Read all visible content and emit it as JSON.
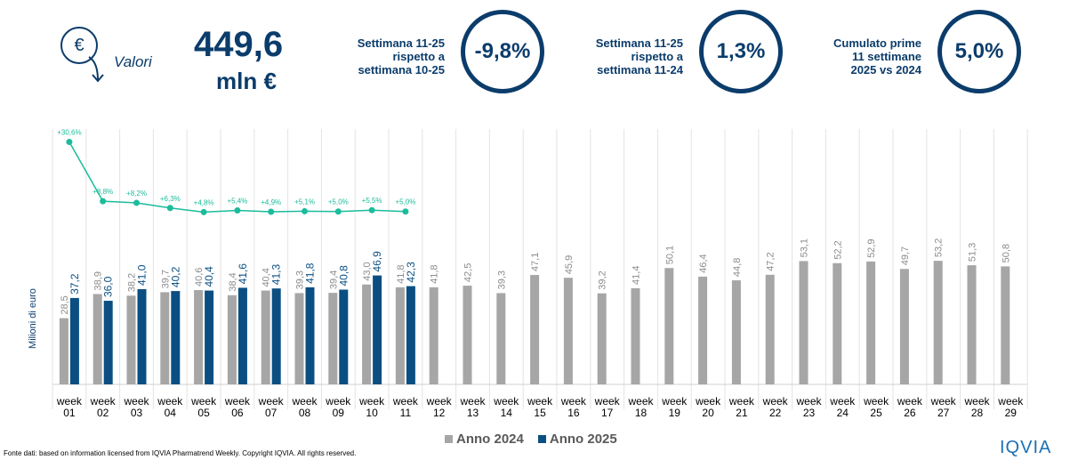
{
  "header": {
    "icon": "€",
    "caption": "Valori",
    "total": "449,6",
    "unit": "mln €",
    "kpis": [
      {
        "lines": [
          "Settimana 11-25",
          "rispetto a",
          "settimana 10-25"
        ],
        "value": "-9,8%"
      },
      {
        "lines": [
          "Settimana 11-25",
          "rispetto a",
          "settimana 11-24"
        ],
        "value": "1,3%"
      },
      {
        "lines": [
          "Cumulato prime",
          "11 settimane",
          "2025 vs 2024"
        ],
        "value": "5,0%"
      }
    ]
  },
  "chart_data": {
    "type": "bar",
    "y_label": "Milioni di euro",
    "categories": [
      "week 01",
      "week 02",
      "week 03",
      "week 04",
      "week 05",
      "week 06",
      "week 07",
      "week 08",
      "week 09",
      "week 10",
      "week 11",
      "week 12",
      "week 13",
      "week 14",
      "week 15",
      "week 16",
      "week 17",
      "week 18",
      "week 19",
      "week 20",
      "week 21",
      "week 22",
      "week 23",
      "week 24",
      "week 25",
      "week 26",
      "week 27",
      "week 28",
      "week 29"
    ],
    "ylim": [
      0,
      60
    ],
    "y2lim": [
      0,
      37
    ],
    "series": [
      {
        "name": "Anno 2024",
        "color": "#a6a6a6",
        "values": [
          28.5,
          38.9,
          38.2,
          39.7,
          40.6,
          38.4,
          40.4,
          39.3,
          39.4,
          43.0,
          41.8,
          41.8,
          42.5,
          39.3,
          47.1,
          45.9,
          39.2,
          41.4,
          50.1,
          46.4,
          44.8,
          47.2,
          53.1,
          52.2,
          52.9,
          49.7,
          53.2,
          51.3,
          50.8
        ],
        "value_labels": [
          "28,5",
          "38,9",
          "38,2",
          "39,7",
          "40,6",
          "38,4",
          "40,4",
          "39,3",
          "39,4",
          "43,0",
          "41,8",
          "41,8",
          "42,5",
          "39,3",
          "47,1",
          "45,9",
          "39,2",
          "41,4",
          "50,1",
          "46,4",
          "44,8",
          "47,2",
          "53,1",
          "52,2",
          "52,9",
          "49,7",
          "53,2",
          "51,3",
          "50,8"
        ]
      },
      {
        "name": "Anno 2025",
        "color": "#0b4f82",
        "values": [
          37.2,
          36.0,
          41.0,
          40.2,
          40.4,
          41.6,
          41.3,
          41.8,
          40.8,
          46.9,
          42.3,
          null,
          null,
          null,
          null,
          null,
          null,
          null,
          null,
          null,
          null,
          null,
          null,
          null,
          null,
          null,
          null,
          null,
          null
        ],
        "value_labels": [
          "37,2",
          "36,0",
          "41,0",
          "40,2",
          "40,4",
          "41,6",
          "41,3",
          "41,8",
          "40,8",
          "46,9",
          "42,3",
          null,
          null,
          null,
          null,
          null,
          null,
          null,
          null,
          null,
          null,
          null,
          null,
          null,
          null,
          null,
          null,
          null,
          null
        ]
      },
      {
        "type": "line",
        "axis": "y2",
        "color": "#1bbc9b",
        "values": [
          30.6,
          8.8,
          8.2,
          6.3,
          4.8,
          5.4,
          4.9,
          5.1,
          5.0,
          5.5,
          5.0,
          null,
          null,
          null,
          null,
          null,
          null,
          null,
          null,
          null,
          null,
          null,
          null,
          null,
          null,
          null,
          null,
          null,
          null
        ],
        "value_labels": [
          "+30,6%",
          "+8,8%",
          "+8,2%",
          "+6,3%",
          "+4,8%",
          "+5,4%",
          "+4,9%",
          "+5,1%",
          "+5,0%",
          "+5,5%",
          "+5,0%",
          null,
          null,
          null,
          null,
          null,
          null,
          null,
          null,
          null,
          null,
          null,
          null,
          null,
          null,
          null,
          null,
          null,
          null
        ]
      }
    ]
  },
  "footer": {
    "source": "Fonte dati: based on information licensed from IQVIA Pharmatrend Weekly. Copyright IQVIA. All rights reserved.",
    "logo": "IQVIA"
  }
}
